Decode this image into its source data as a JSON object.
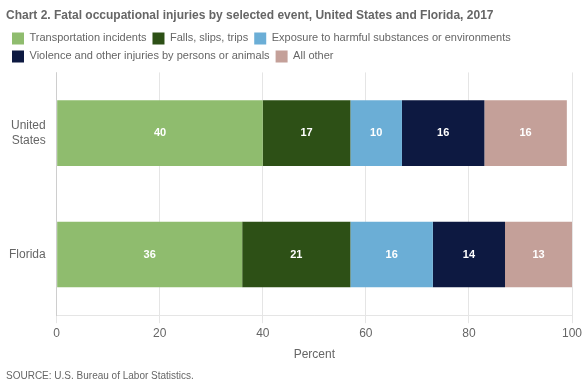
{
  "chart_data": {
    "type": "bar",
    "orientation": "horizontal",
    "stacked": true,
    "title": "Chart 2. Fatal occupational injuries by selected event, United States and Florida, 2017",
    "source": "SOURCE: U.S. Bureau of Labor Statistics.",
    "categories": [
      "United\nStates",
      "Florida"
    ],
    "series": [
      {
        "name": "Transportation incidents",
        "color": "#8fbc6e",
        "values": [
          40,
          36
        ]
      },
      {
        "name": "Falls, slips, trips",
        "color": "#2d5016",
        "values": [
          17,
          21
        ]
      },
      {
        "name": "Exposure to harmful substances or environments",
        "color": "#6baed6",
        "values": [
          10,
          16
        ]
      },
      {
        "name": "Violence and other injuries by persons or animals",
        "color": "#0d1941",
        "values": [
          16,
          14
        ]
      },
      {
        "name": "All other",
        "color": "#c4a099",
        "values": [
          16,
          13
        ]
      }
    ],
    "xlabel": "Percent",
    "xlim": [
      0,
      100
    ],
    "xticks": [
      0,
      20,
      40,
      60,
      80,
      100
    ],
    "grid": "x",
    "legend": "top",
    "data_labels": true
  }
}
